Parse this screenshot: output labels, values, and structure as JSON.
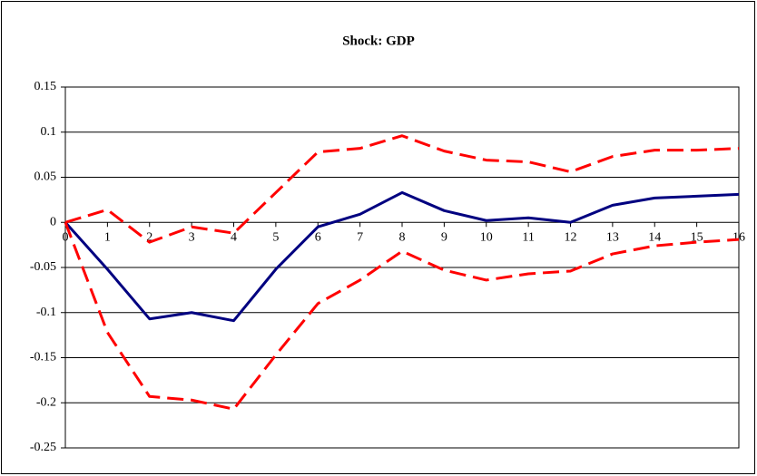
{
  "chart_data": {
    "type": "line",
    "title": "Shock: GDP",
    "x": [
      0,
      1,
      2,
      3,
      4,
      5,
      6,
      7,
      8,
      9,
      10,
      11,
      12,
      13,
      14,
      15,
      16
    ],
    "xlim": [
      0,
      16
    ],
    "xticks": [
      0,
      1,
      2,
      3,
      4,
      5,
      6,
      7,
      8,
      9,
      10,
      11,
      12,
      13,
      14,
      15,
      16
    ],
    "ylim": [
      -0.25,
      0.15
    ],
    "yticks": [
      0.15,
      0.1,
      0.05,
      0,
      -0.05,
      -0.1,
      -0.15,
      -0.2,
      -0.25
    ],
    "grid": true,
    "series": [
      {
        "color": "#000080",
        "dashed": false,
        "values": [
          0,
          -0.052,
          -0.107,
          -0.1,
          -0.109,
          -0.052,
          -0.005,
          0.009,
          0.033,
          0.013,
          0.002,
          0.005,
          0.0,
          0.019,
          0.027,
          0.029,
          0.031
        ]
      },
      {
        "color": "#ff0000",
        "dashed": true,
        "values": [
          0,
          0.014,
          -0.022,
          -0.005,
          -0.012,
          0.033,
          0.078,
          0.082,
          0.096,
          0.079,
          0.069,
          0.067,
          0.056,
          0.073,
          0.08,
          0.08,
          0.082
        ]
      },
      {
        "color": "#ff0000",
        "dashed": true,
        "values": [
          0,
          -0.122,
          -0.193,
          -0.197,
          -0.207,
          -0.147,
          -0.09,
          -0.064,
          -0.032,
          -0.053,
          -0.064,
          -0.057,
          -0.054,
          -0.035,
          -0.026,
          -0.022,
          -0.019
        ]
      }
    ]
  }
}
